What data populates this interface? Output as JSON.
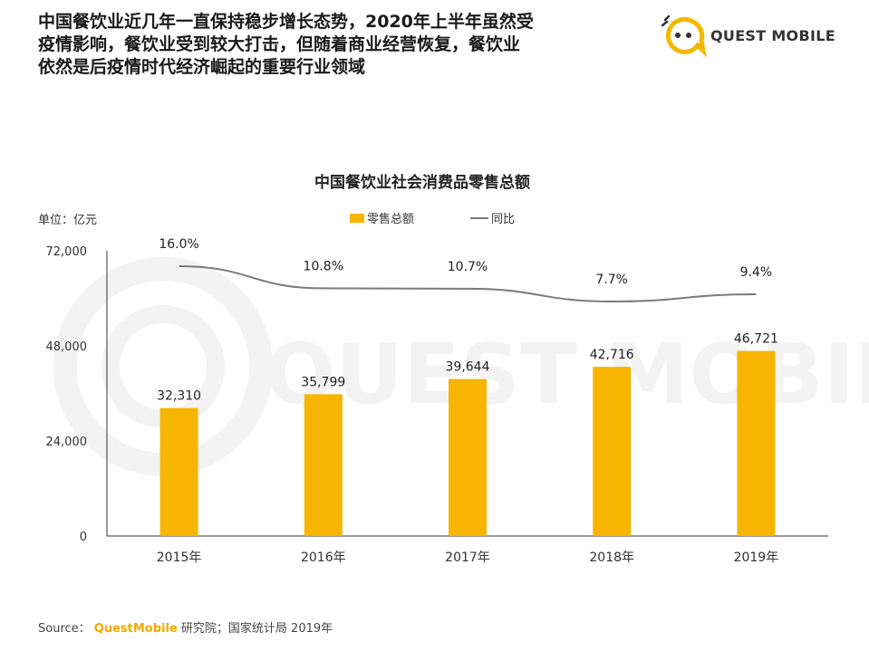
{
  "headline": {
    "lines": [
      "中国餐饮业近几年一直保持稳步增长态势，2020年上半年虽然受",
      "疫情影响，餐饮业受到较大打击，但随着商业经营恢复，餐饮业",
      "依然是后疫情时代经济崛起的重要行业领域"
    ]
  },
  "logo": {
    "text": "QUEST MOBILE",
    "icon": "quest-mobile-logo-icon",
    "color": "#f5b800"
  },
  "watermark": {
    "text": "QUEST MOBILE",
    "color": "#f3f3f3"
  },
  "chart_data": {
    "type": "bar",
    "title": "中国餐饮业社会消费品零售总额",
    "unit_label": "单位：亿元",
    "categories": [
      "2015年",
      "2016年",
      "2017年",
      "2018年",
      "2019年"
    ],
    "series": [
      {
        "name": "零售总额",
        "type": "bar",
        "values": [
          32310,
          35799,
          39644,
          42716,
          46721
        ],
        "labels": [
          "32,310",
          "35,799",
          "39,644",
          "42,716",
          "46,721"
        ],
        "color": "#f7b500"
      },
      {
        "name": "同比",
        "type": "line",
        "values": [
          16.0,
          10.8,
          10.7,
          7.7,
          9.4
        ],
        "labels": [
          "16.0%",
          "10.8%",
          "10.7%",
          "7.7%",
          "9.4%"
        ],
        "color": "#7a7a7a"
      }
    ],
    "ylim": [
      0,
      72000
    ],
    "yticks": [
      0,
      24000,
      48000,
      72000
    ],
    "ytick_labels": [
      "0",
      "24,000",
      "48,000",
      "72,000"
    ],
    "legend_position": "top-center",
    "grid": false
  },
  "source": {
    "prefix": "Source：",
    "brand": "QuestMobile",
    "rest": " 研究院；国家统计局 2019年"
  }
}
